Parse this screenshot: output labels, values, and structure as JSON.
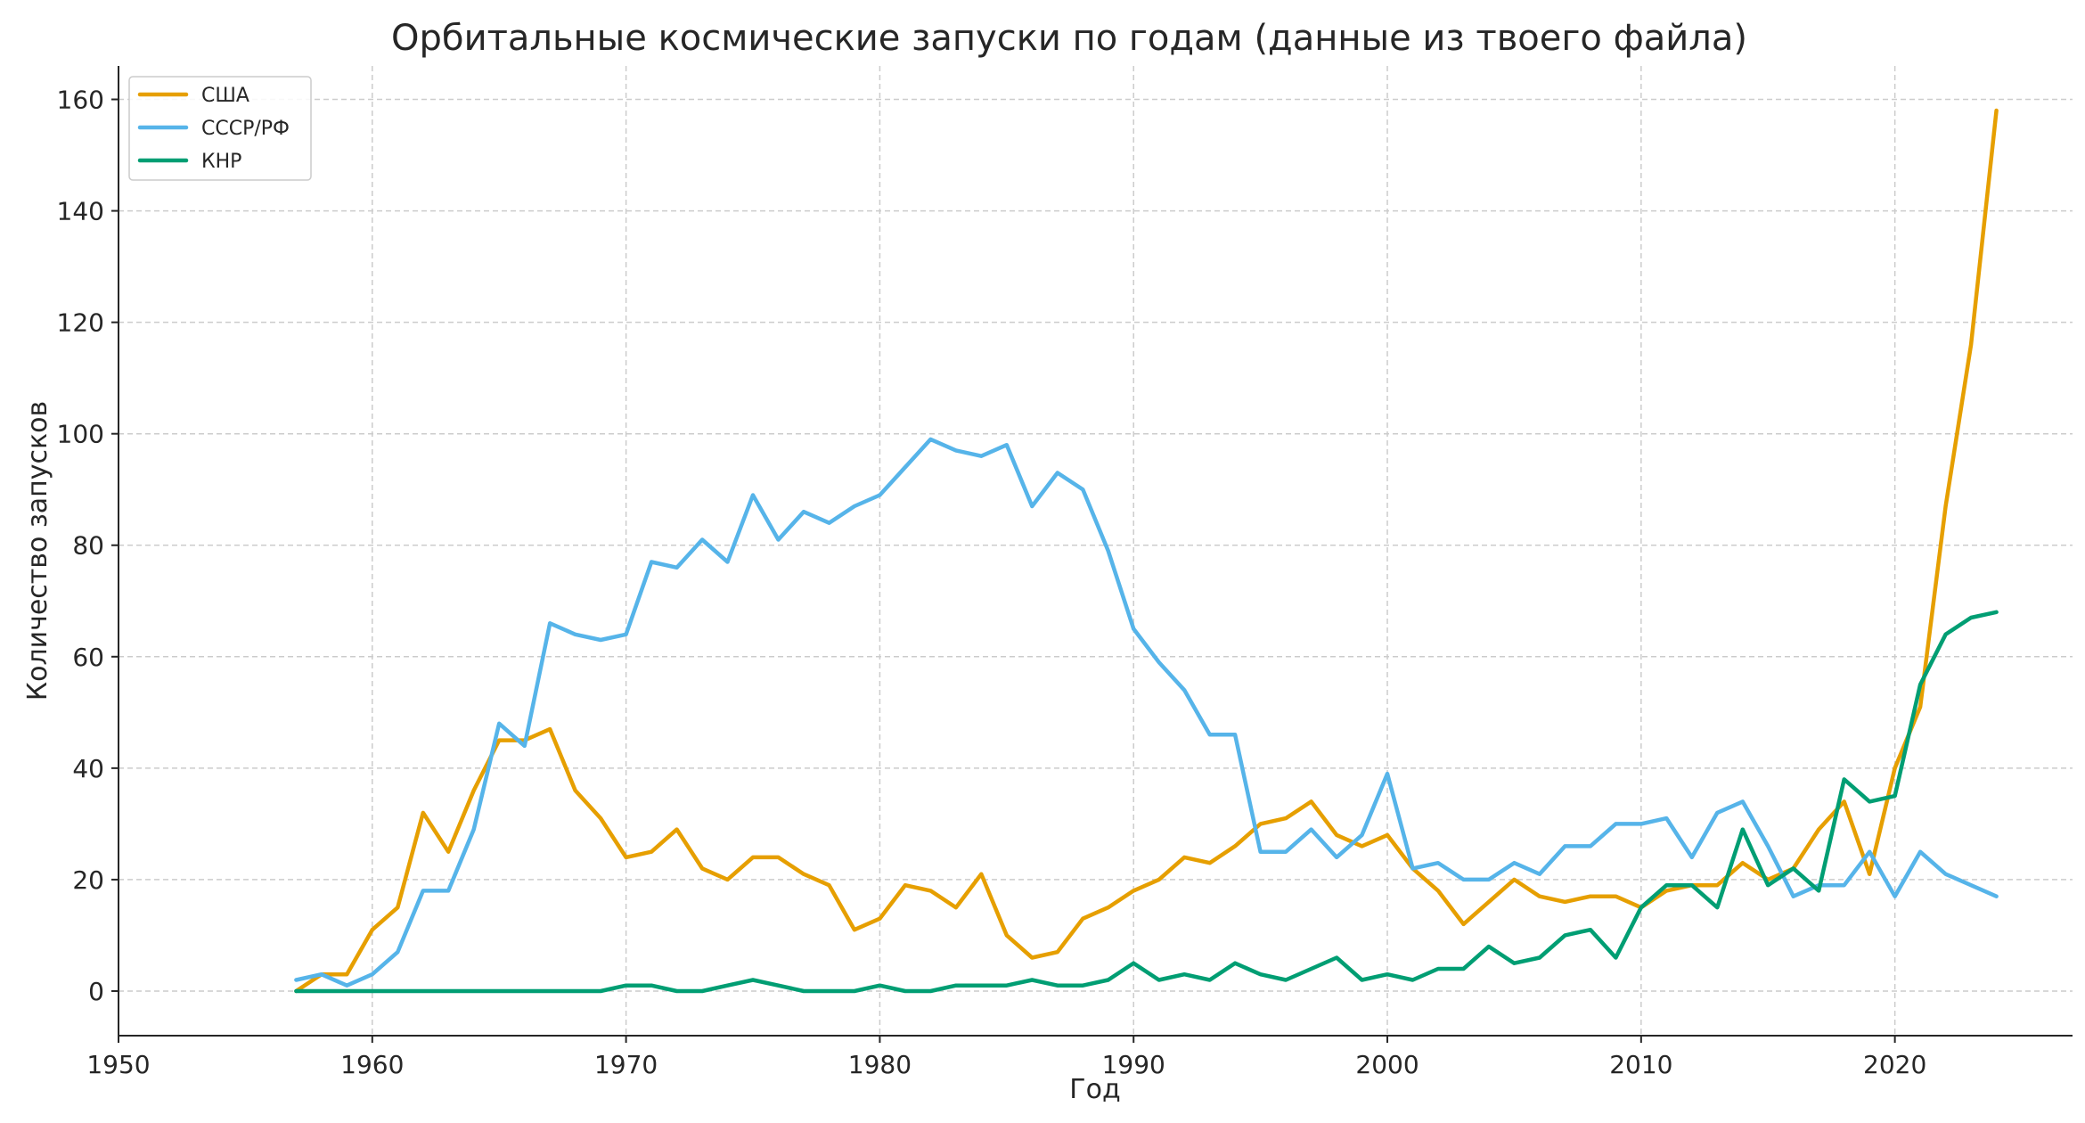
{
  "chart_data": {
    "type": "line",
    "title": "Орбитальные космические запуски по годам (данные из твоего файла)",
    "xlabel": "Год",
    "ylabel": "Количество запусков",
    "xlim": [
      1950,
      2027
    ],
    "ylim": [
      -8,
      166
    ],
    "xticks": [
      1950,
      1960,
      1970,
      1980,
      1990,
      2000,
      2010,
      2020
    ],
    "yticks": [
      0,
      20,
      40,
      60,
      80,
      100,
      120,
      140,
      160
    ],
    "grid": true,
    "legend_position": "top-left",
    "x": [
      1957,
      1958,
      1959,
      1960,
      1961,
      1962,
      1963,
      1964,
      1965,
      1966,
      1967,
      1968,
      1969,
      1970,
      1971,
      1972,
      1973,
      1974,
      1975,
      1976,
      1977,
      1978,
      1979,
      1980,
      1981,
      1982,
      1983,
      1984,
      1985,
      1986,
      1987,
      1988,
      1989,
      1990,
      1991,
      1992,
      1993,
      1994,
      1995,
      1996,
      1997,
      1998,
      1999,
      2000,
      2001,
      2002,
      2003,
      2004,
      2005,
      2006,
      2007,
      2008,
      2009,
      2010,
      2011,
      2012,
      2013,
      2014,
      2015,
      2016,
      2017,
      2018,
      2019,
      2020,
      2021,
      2022,
      2023,
      2024
    ],
    "series": [
      {
        "name": "США",
        "color": "#E69F00",
        "values": [
          0,
          3,
          3,
          11,
          15,
          32,
          25,
          36,
          45,
          45,
          47,
          36,
          31,
          24,
          25,
          29,
          22,
          20,
          24,
          24,
          21,
          19,
          11,
          13,
          19,
          18,
          15,
          21,
          10,
          6,
          7,
          13,
          15,
          18,
          20,
          24,
          23,
          26,
          30,
          31,
          34,
          28,
          26,
          28,
          22,
          18,
          12,
          16,
          20,
          17,
          16,
          17,
          17,
          15,
          18,
          19,
          19,
          23,
          20,
          22,
          29,
          34,
          21,
          40,
          51,
          87,
          116,
          158
        ]
      },
      {
        "name": "СССР/РФ",
        "color": "#56B4E9",
        "values": [
          2,
          3,
          1,
          3,
          7,
          18,
          18,
          29,
          48,
          44,
          66,
          64,
          63,
          64,
          77,
          76,
          81,
          77,
          89,
          81,
          86,
          84,
          87,
          89,
          94,
          99,
          97,
          96,
          98,
          87,
          93,
          90,
          79,
          65,
          59,
          54,
          46,
          46,
          25,
          25,
          29,
          24,
          28,
          39,
          22,
          23,
          20,
          20,
          23,
          21,
          26,
          26,
          30,
          30,
          31,
          24,
          32,
          34,
          26,
          17,
          19,
          19,
          25,
          17,
          25,
          21,
          19,
          17
        ]
      },
      {
        "name": "КНР",
        "color": "#009E73",
        "values": [
          0,
          0,
          0,
          0,
          0,
          0,
          0,
          0,
          0,
          0,
          0,
          0,
          0,
          1,
          1,
          0,
          0,
          1,
          2,
          1,
          0,
          0,
          0,
          1,
          0,
          0,
          1,
          1,
          1,
          2,
          1,
          1,
          2,
          5,
          2,
          3,
          2,
          5,
          3,
          2,
          4,
          6,
          2,
          3,
          2,
          4,
          4,
          8,
          5,
          6,
          10,
          11,
          6,
          15,
          19,
          19,
          15,
          29,
          19,
          22,
          18,
          38,
          34,
          35,
          55,
          64,
          67,
          68
        ]
      }
    ]
  }
}
